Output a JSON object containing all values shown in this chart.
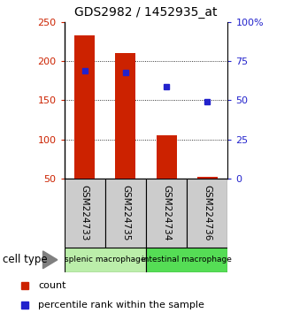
{
  "title": "GDS2982 / 1452935_at",
  "samples": [
    "GSM224733",
    "GSM224735",
    "GSM224734",
    "GSM224736"
  ],
  "bar_bottom": 50,
  "bar_tops": [
    233,
    210,
    105,
    52
  ],
  "percentile_values": [
    188,
    185,
    167,
    148
  ],
  "ylim_left": [
    50,
    250
  ],
  "ylim_right": [
    0,
    100
  ],
  "yticks_left": [
    50,
    100,
    150,
    200,
    250
  ],
  "yticks_right": [
    0,
    25,
    50,
    75,
    100
  ],
  "bar_color": "#cc2200",
  "dot_color": "#2222cc",
  "bar_width": 0.5,
  "cell_types": [
    {
      "label": "splenic macrophage",
      "samples": [
        0,
        1
      ],
      "color": "#bbeeaa"
    },
    {
      "label": "intestinal macrophage",
      "samples": [
        2,
        3
      ],
      "color": "#55dd55"
    }
  ],
  "cell_type_label": "cell type",
  "legend_items": [
    {
      "color": "#cc2200",
      "label": "count"
    },
    {
      "color": "#2222cc",
      "label": "percentile rank within the sample"
    }
  ],
  "sample_box_color": "#cccccc",
  "left_tick_color": "#cc2200",
  "right_tick_color": "#2222cc",
  "grid_yticks": [
    100,
    150,
    200
  ]
}
